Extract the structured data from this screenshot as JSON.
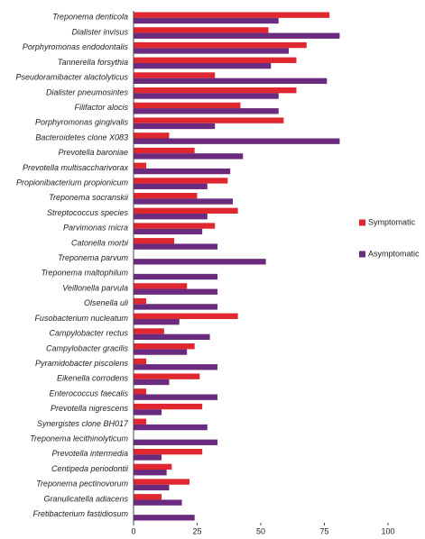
{
  "chart_data": {
    "type": "hbar",
    "categories": [
      "Treponema denticola",
      "Dialister invisus",
      "Porphyromonas endodontalis",
      "Tannerella forsythia",
      "Pseudoramibacter alactolyticus",
      "Dialister pneumosintes",
      "Filifactor alocis",
      "Porphyromonas gingivalis",
      "Bacteroidetes clone X083",
      "Prevotella baroniae",
      "Prevotella multisaccharivorax",
      "Propionibacterium propionicum",
      "Treponema socranskii",
      "Streptococcus species",
      "Parvimonas micra",
      "Catonella morbi",
      "Treponema parvum",
      "Treponema maltophilum",
      "Veillonella parvula",
      "Olsenella uli",
      "Fusobacterium nucleatum",
      "Campylobacter rectus",
      "Campylobacter gracilis",
      "Pyramidobacter piscolens",
      "Eikenella corrodens",
      "Enterococcus faecalis",
      "Prevotella nigrescens",
      "Synergistes clone BH017",
      "Treponema lecithinolyticum",
      "Prevotella intermedia",
      "Centipeda periodontii",
      "Treponema pectinovorum",
      "Granulicatella adiacens",
      "Fretibacterium fastidiosum"
    ],
    "series": [
      {
        "name": "Symptomatic",
        "color": "#e0262e",
        "values": [
          77,
          53,
          68,
          64,
          32,
          64,
          42,
          59,
          14,
          24,
          5,
          37,
          25,
          41,
          32,
          16,
          0,
          0,
          21,
          5,
          41,
          12,
          24,
          5,
          26,
          5,
          27,
          5,
          0,
          27,
          15,
          22,
          11,
          0
        ]
      },
      {
        "name": "Asymptomatic",
        "color": "#6a2a7d",
        "values": [
          57,
          81,
          61,
          54,
          76,
          57,
          57,
          32,
          81,
          43,
          38,
          29,
          39,
          29,
          27,
          33,
          52,
          33,
          33,
          33,
          18,
          30,
          21,
          33,
          14,
          33,
          11,
          29,
          33,
          11,
          13,
          14,
          19,
          24
        ]
      }
    ],
    "xlim": [
      0,
      100
    ],
    "xticks": [
      0,
      25,
      50,
      75,
      100
    ],
    "legend": "right"
  }
}
